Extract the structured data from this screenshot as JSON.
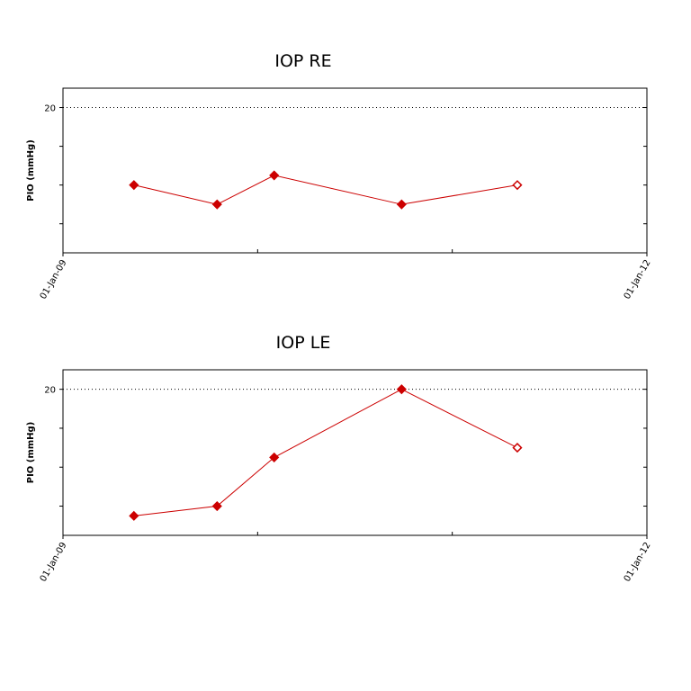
{
  "chart_data": [
    {
      "type": "line",
      "title": "IOP RE",
      "y_label": "PIO (mmHg)",
      "x": [
        "2009-05-14",
        "2009-10-17",
        "2010-02-01",
        "2010-09-28",
        "2011-05-03"
      ],
      "series": [
        {
          "name": "RE",
          "color": "#cc0000",
          "values": [
            16,
            15,
            16.5,
            15,
            16
          ]
        }
      ],
      "xlim": [
        "2009-01-01",
        "2012-01-01"
      ],
      "xticks": [
        {
          "value": "2009-01-01",
          "label": "01-Jan-09"
        },
        {
          "value": "2012-01-01",
          "label": "01-Jan-12"
        }
      ],
      "minor_xticks": [
        "2010-01-01",
        "2011-01-01"
      ],
      "ylim": [
        12.5,
        21
      ],
      "yticks": [
        20
      ],
      "minor_yticks": [
        14,
        16,
        18
      ],
      "reference_line": 20,
      "last_marker": "hollow"
    },
    {
      "type": "line",
      "title": "IOP LE",
      "y_label": "PIO (mmHg)",
      "x": [
        "2009-05-14",
        "2009-10-17",
        "2010-02-01",
        "2010-09-28",
        "2011-05-03"
      ],
      "series": [
        {
          "name": "LE",
          "color": "#cc0000",
          "values": [
            13.5,
            14,
            16.5,
            20,
            17
          ]
        }
      ],
      "xlim": [
        "2009-01-01",
        "2012-01-01"
      ],
      "xticks": [
        {
          "value": "2009-01-01",
          "label": "01-Jan-09"
        },
        {
          "value": "2012-01-01",
          "label": "01-Jan-12"
        }
      ],
      "minor_xticks": [
        "2010-01-01",
        "2011-01-01"
      ],
      "ylim": [
        12.5,
        21
      ],
      "yticks": [
        20
      ],
      "minor_yticks": [
        14,
        16,
        18
      ],
      "reference_line": 20,
      "last_marker": "hollow"
    }
  ]
}
